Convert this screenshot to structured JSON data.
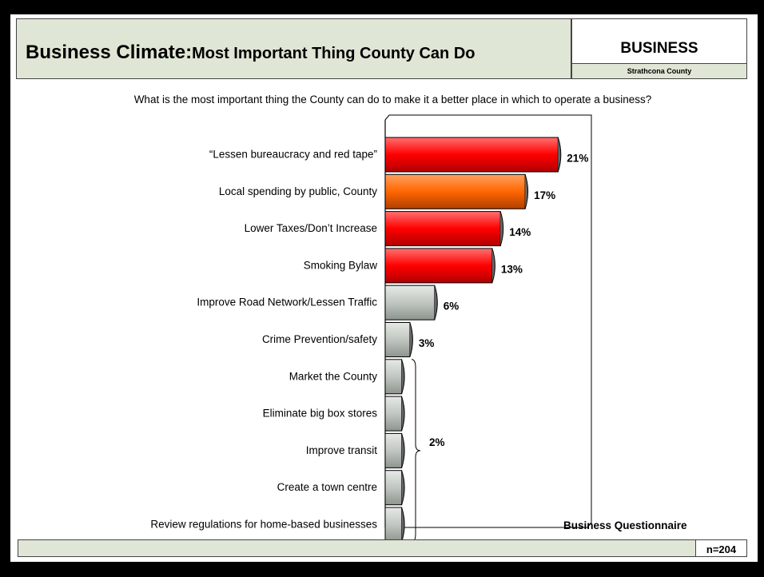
{
  "header": {
    "title_part1": "Business Climate:",
    "title_part2": "Most Important Thing County Can Do",
    "section": "BUSINESS",
    "subsection": "Strathcona County"
  },
  "question": "What is the most important thing the County can do to make it a better place in which to operate a business?",
  "footer": {
    "source": "Business Questionnaire",
    "sample": "n=204"
  },
  "colors": {
    "red": "#ff0000",
    "orange": "#ff6600",
    "gray": "#c0c6c0",
    "panel": "#dfe6d5"
  },
  "chart_data": {
    "type": "bar",
    "orientation": "horizontal",
    "categories": [
      "“Lessen bureaucracy and red tape”",
      "Local spending by public, County",
      "Lower Taxes/Don’t Increase",
      "Smoking Bylaw",
      "Improve Road Network/Lessen Traffic",
      "Crime Prevention/safety",
      "Market the County",
      "Eliminate big box stores",
      "Improve transit",
      "Create a town centre",
      "Review regulations for home-based businesses"
    ],
    "values": [
      21,
      17,
      14,
      13,
      6,
      3,
      2,
      2,
      2,
      2,
      2
    ],
    "bar_colors": [
      "red",
      "orange",
      "red",
      "red",
      "gray",
      "gray",
      "gray",
      "gray",
      "gray",
      "gray",
      "gray"
    ],
    "data_labels": [
      "21%",
      "17%",
      "14%",
      "13%",
      "6%",
      "3%",
      "",
      "",
      "",
      "",
      ""
    ],
    "grouped_label": {
      "text": "2%",
      "from_index": 6,
      "to_index": 10
    },
    "xlim": [
      0,
      25
    ]
  }
}
